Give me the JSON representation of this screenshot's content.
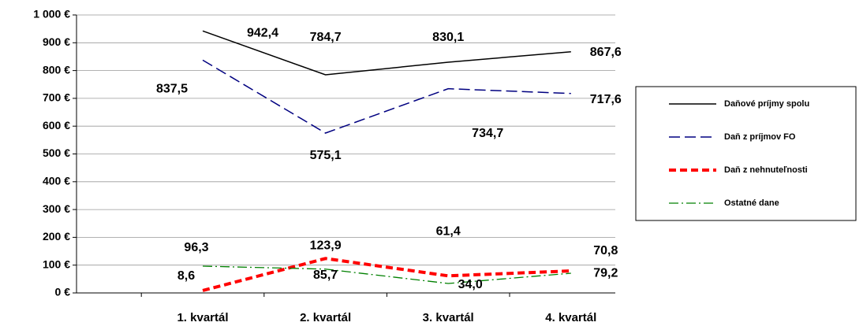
{
  "chart_data": {
    "type": "line",
    "categories": [
      "1. kvartál",
      "2. kvartál",
      "3. kvartál",
      "4. kvartál"
    ],
    "series": [
      {
        "name": "Daňové príjmy spolu",
        "color": "#000000",
        "values": [
          942.4,
          784.7,
          830.1,
          867.6
        ],
        "value_labels": [
          "942,4",
          "784,7",
          "830,1",
          "867,6"
        ]
      },
      {
        "name": "Daň z príjmov FO",
        "color": "#000080",
        "values": [
          837.5,
          575.1,
          734.7,
          717.6
        ],
        "value_labels": [
          "837,5",
          "575,1",
          "734,7",
          "717,6"
        ]
      },
      {
        "name": "Daň z nehnuteľnosti",
        "color": "#ff0000",
        "values": [
          8.6,
          123.9,
          61.4,
          79.2
        ],
        "value_labels": [
          "8,6",
          "123,9",
          "61,4",
          "79,2"
        ]
      },
      {
        "name": "Ostatné dane",
        "color": "#008000",
        "values": [
          96.3,
          85.7,
          34.0,
          70.8
        ],
        "value_labels": [
          "96,3",
          "85,7",
          "34,0",
          "70,8"
        ]
      }
    ],
    "ylim": [
      0,
      1000
    ],
    "yticks": [
      {
        "value": 0,
        "label": "0 €"
      },
      {
        "value": 100,
        "label": "100 €"
      },
      {
        "value": 200,
        "label": "200 €"
      },
      {
        "value": 300,
        "label": "300 €"
      },
      {
        "value": 400,
        "label": "400 €"
      },
      {
        "value": 500,
        "label": "500 €"
      },
      {
        "value": 600,
        "label": "600 €"
      },
      {
        "value": 700,
        "label": "700 €"
      },
      {
        "value": 800,
        "label": "800 €"
      },
      {
        "value": 900,
        "label": "900 €"
      },
      {
        "value": 1000,
        "label": "1 000 €"
      }
    ],
    "grid": true
  }
}
